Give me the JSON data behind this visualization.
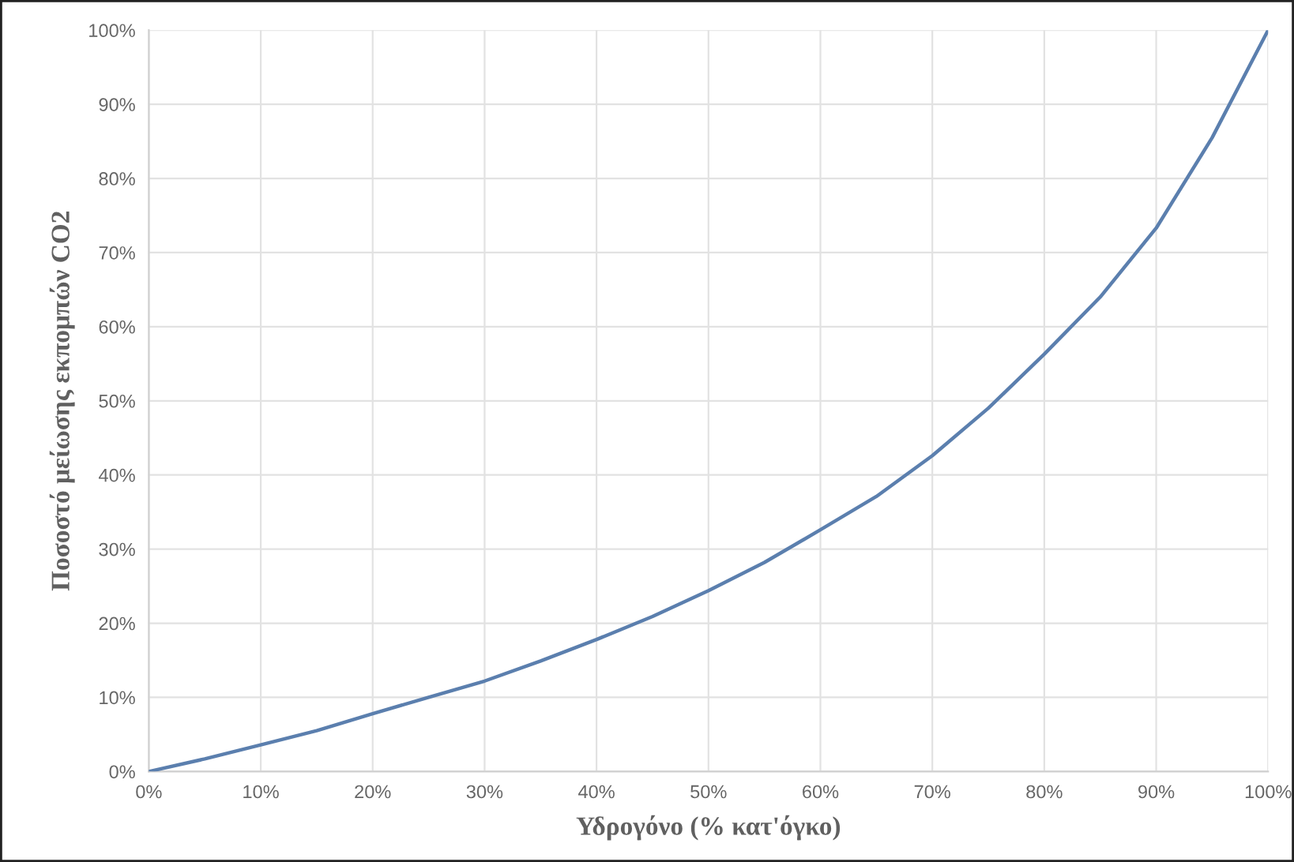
{
  "chart_data": {
    "type": "line",
    "xlabel": "Υδρογόνο (% κατ'όγκο)",
    "ylabel": "Ποσοστό μείωσης εκπομπών CO2",
    "x": [
      0,
      5,
      10,
      15,
      20,
      25,
      30,
      35,
      40,
      45,
      50,
      55,
      60,
      65,
      70,
      75,
      80,
      85,
      90,
      95,
      100
    ],
    "series": [
      {
        "color": "#5b7fae",
        "values": [
          0,
          1.7,
          3.6,
          5.5,
          7.8,
          10,
          12.2,
          14.9,
          17.8,
          20.9,
          24.4,
          28.2,
          32.6,
          37.1,
          42.6,
          49,
          56.3,
          64,
          73.3,
          85.5,
          100
        ]
      }
    ],
    "xlim": [
      0,
      100
    ],
    "ylim": [
      0,
      100
    ],
    "xticks": [
      {
        "value": 0,
        "label": "0%"
      },
      {
        "value": 10,
        "label": "10%"
      },
      {
        "value": 20,
        "label": "20%"
      },
      {
        "value": 30,
        "label": "30%"
      },
      {
        "value": 40,
        "label": "40%"
      },
      {
        "value": 50,
        "label": "50%"
      },
      {
        "value": 60,
        "label": "60%"
      },
      {
        "value": 70,
        "label": "70%"
      },
      {
        "value": 80,
        "label": "80%"
      },
      {
        "value": 90,
        "label": "90%"
      },
      {
        "value": 100,
        "label": "100%"
      }
    ],
    "yticks": [
      {
        "value": 0,
        "label": "0%"
      },
      {
        "value": 10,
        "label": "10%"
      },
      {
        "value": 20,
        "label": "20%"
      },
      {
        "value": 30,
        "label": "30%"
      },
      {
        "value": 40,
        "label": "40%"
      },
      {
        "value": 50,
        "label": "50%"
      },
      {
        "value": 60,
        "label": "60%"
      },
      {
        "value": 70,
        "label": "70%"
      },
      {
        "value": 80,
        "label": "80%"
      },
      {
        "value": 90,
        "label": "90%"
      },
      {
        "value": 100,
        "label": "100%"
      }
    ],
    "grid": true,
    "marker": "none",
    "line_style": "solid"
  }
}
